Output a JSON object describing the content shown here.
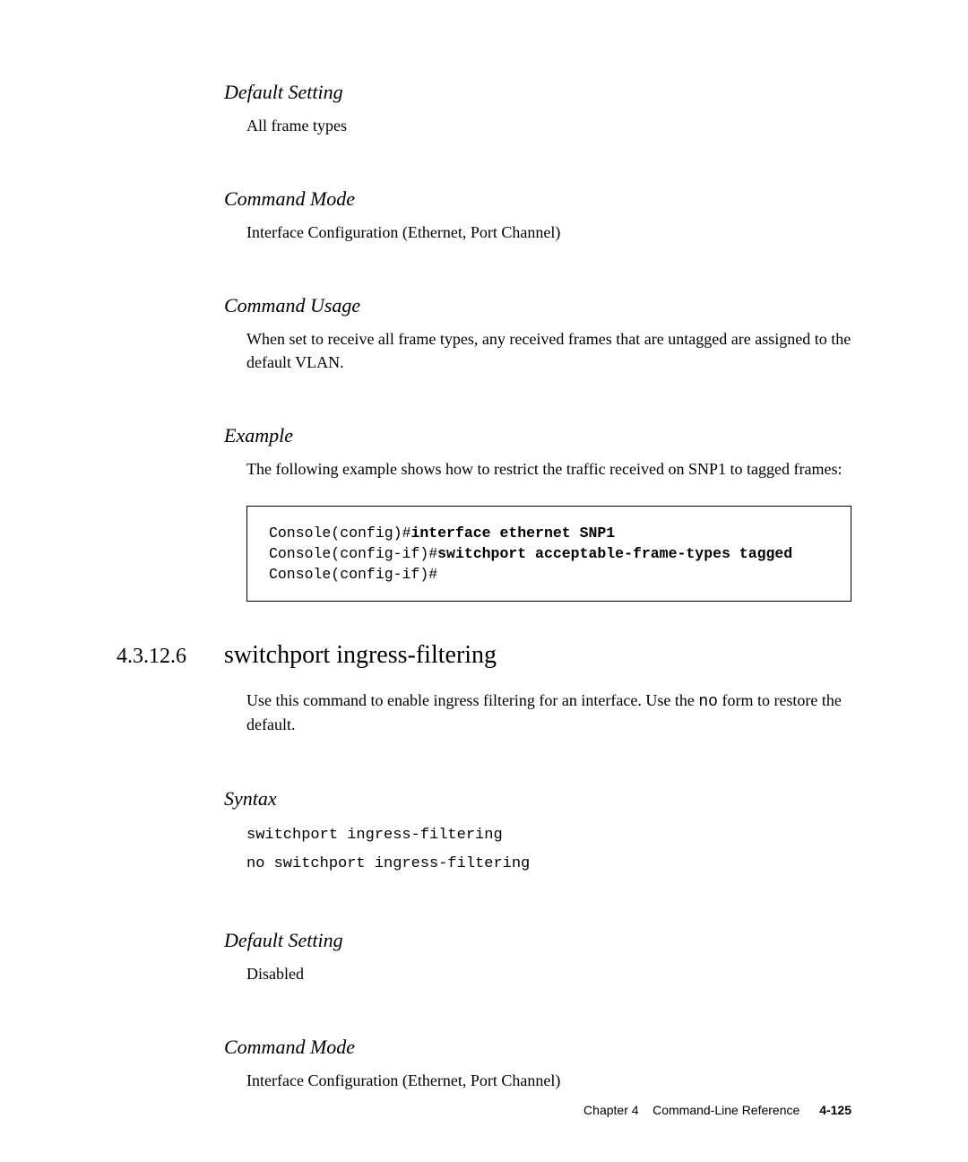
{
  "sections": {
    "default_setting_1": {
      "heading": "Default Setting",
      "text": "All frame types"
    },
    "command_mode_1": {
      "heading": "Command Mode",
      "text": "Interface Configuration (Ethernet, Port Channel)"
    },
    "command_usage": {
      "heading": "Command Usage",
      "text": "When set to receive all frame types, any received frames that are untagged are assigned to the default VLAN."
    },
    "example": {
      "heading": "Example",
      "text": "The following example shows how to restrict the traffic received on SNP1 to tagged frames:",
      "code_line1_prompt": "Console(config)#",
      "code_line1_cmd": "interface ethernet SNP1",
      "code_line2_prompt": "Console(config-if)#",
      "code_line2_cmd": "switchport acceptable-frame-types tagged",
      "code_line3_prompt": "Console(config-if)#"
    },
    "main": {
      "number": "4.3.12.6",
      "title": "switchport ingress-filtering",
      "desc_pre": "Use this command to enable ingress filtering for an interface. Use the ",
      "desc_code": "no",
      "desc_post": " form to restore the default."
    },
    "syntax": {
      "heading": "Syntax",
      "line1": "switchport ingress-filtering",
      "line2": "no switchport ingress-filtering"
    },
    "default_setting_2": {
      "heading": "Default Setting",
      "text": "Disabled"
    },
    "command_mode_2": {
      "heading": "Command Mode",
      "text": "Interface Configuration (Ethernet, Port Channel)"
    }
  },
  "footer": {
    "chapter": "Chapter 4",
    "title": "Command-Line Reference",
    "page": "4-125"
  }
}
